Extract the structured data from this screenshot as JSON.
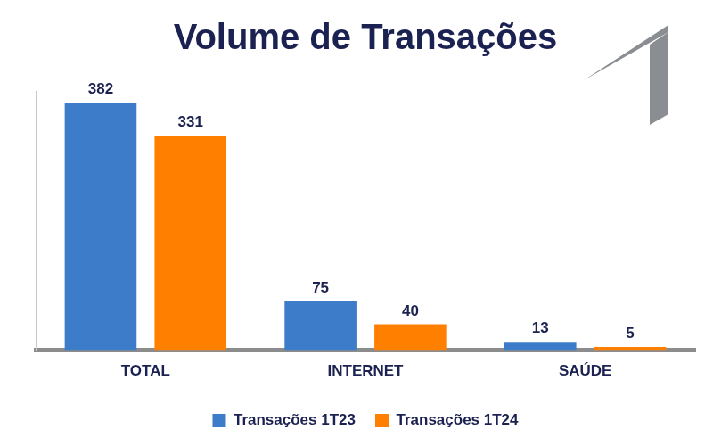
{
  "chart_data": {
    "type": "bar",
    "title": "Volume de Transações",
    "categories": [
      "TOTAL",
      "INTERNET",
      "SAÚDE"
    ],
    "series": [
      {
        "name": "Transações 1T23",
        "color": "#3d7cc9",
        "values": [
          382,
          75,
          13
        ]
      },
      {
        "name": "Transações 1T24",
        "color": "#ff8000",
        "values": [
          331,
          40,
          5
        ]
      }
    ],
    "ylim": [
      0,
      400
    ],
    "grid": false,
    "legend": "bottom",
    "data_labels": true,
    "tick_labels": "x"
  }
}
